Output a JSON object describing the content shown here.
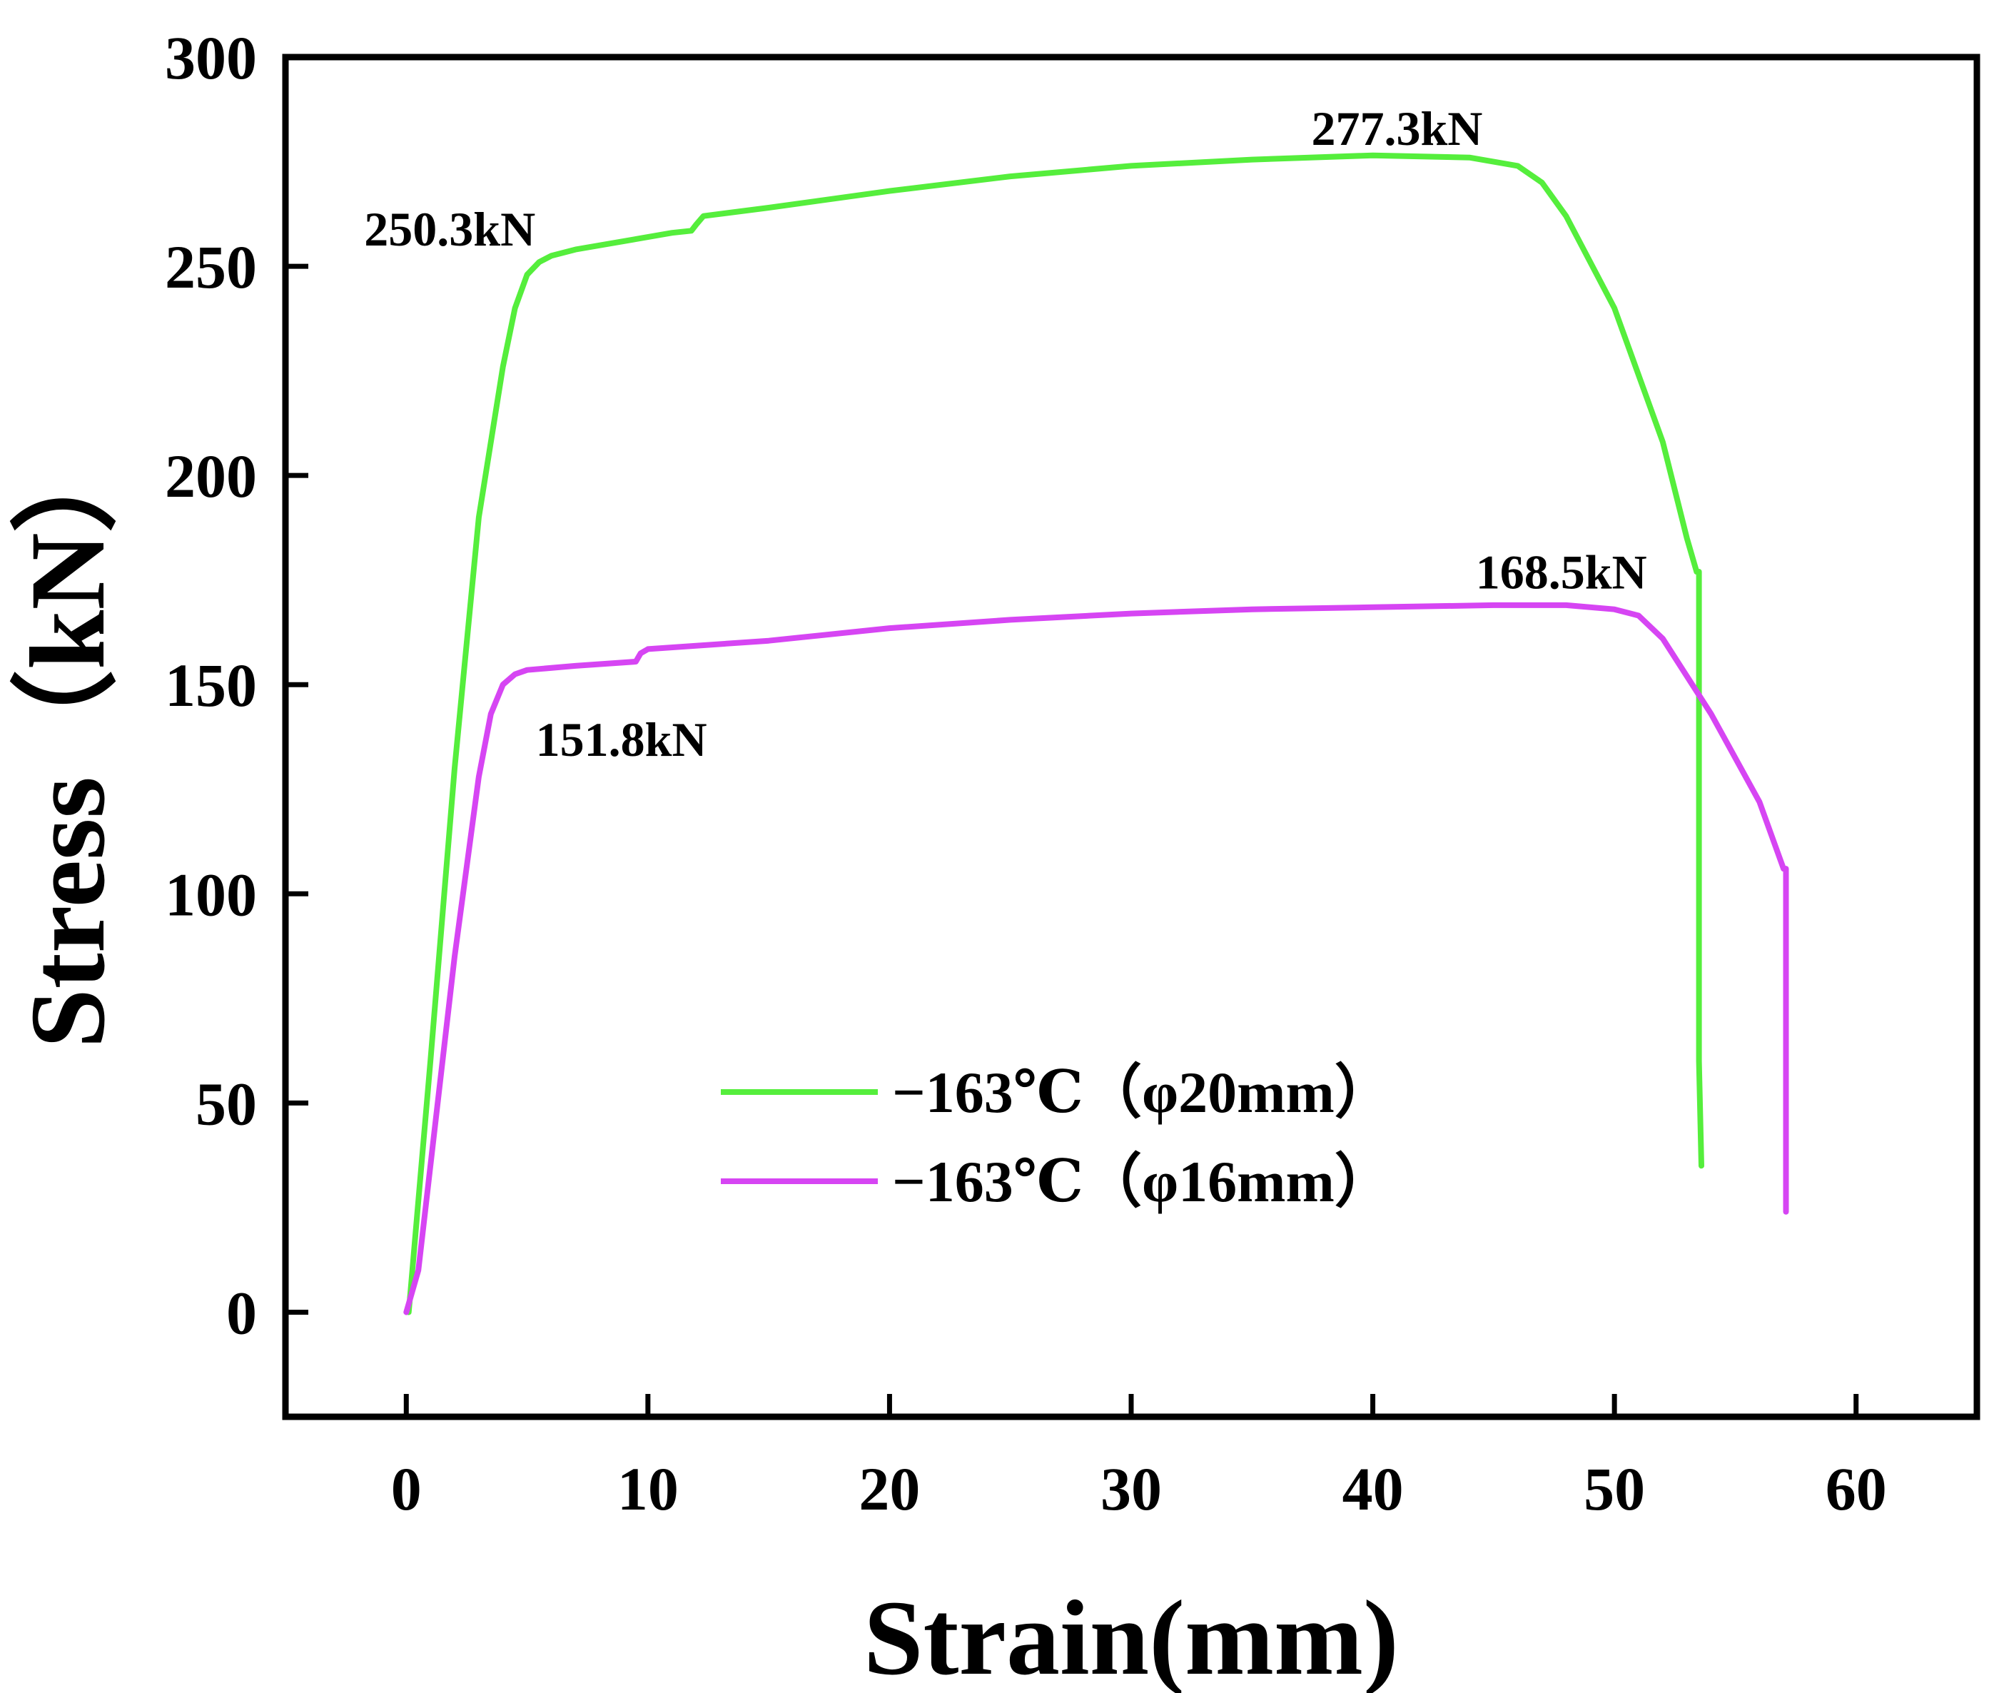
{
  "chart_data": {
    "type": "line",
    "title": "",
    "xlabel": "Strain(mm)",
    "ylabel": "Stress（kN）",
    "xlim": [
      -5,
      65
    ],
    "ylim": [
      -25,
      300
    ],
    "xticks": [
      0,
      10,
      20,
      30,
      40,
      50,
      60
    ],
    "yticks": [
      0,
      50,
      100,
      150,
      200,
      250,
      300
    ],
    "grid": false,
    "legend_position": "bottom-center",
    "series": [
      {
        "name": "−163℃（φ20mm）",
        "color": "#55ee3c",
        "x": [
          0.1,
          1.0,
          2.0,
          3.0,
          4.0,
          4.5,
          5.0,
          5.5,
          6.0,
          7.0,
          9.0,
          11.0,
          11.8,
          12.0,
          12.3,
          15.0,
          20.0,
          25.0,
          30.0,
          35.0,
          40.0,
          44.0,
          46.0,
          47.0,
          48.0,
          50.0,
          52.0,
          53.0,
          53.4,
          53.5,
          53.5,
          53.6
        ],
        "y": [
          0,
          60,
          130,
          190,
          226,
          240,
          248,
          251,
          252.5,
          254,
          256,
          258,
          258.5,
          260,
          262,
          264,
          268,
          271.5,
          274,
          275.5,
          276.5,
          276,
          274,
          270,
          262,
          240,
          208,
          185,
          177,
          177,
          60,
          35
        ]
      },
      {
        "name": "−163℃（φ16mm）",
        "color": "#d645f3",
        "x": [
          0.0,
          0.5,
          1.0,
          2.0,
          3.0,
          3.5,
          4.0,
          4.5,
          5.0,
          7.0,
          9.5,
          9.7,
          10.0,
          15.0,
          20.0,
          25.0,
          30.0,
          35.0,
          40.0,
          45.0,
          48.0,
          50.0,
          51.0,
          52.0,
          54.0,
          56.0,
          57.0,
          57.1,
          57.1,
          57.1
        ],
        "y": [
          0,
          10,
          35,
          85,
          128,
          143,
          150,
          152.5,
          153.5,
          154.5,
          155.5,
          157.5,
          158.5,
          160.5,
          163.5,
          165.5,
          167,
          168,
          168.5,
          169,
          169,
          168,
          166.5,
          161,
          143,
          122,
          106,
          106,
          70,
          24
        ]
      }
    ],
    "annotations": [
      {
        "text": "250.3kN",
        "x": 1.8,
        "y": 255
      },
      {
        "text": "277.3kN",
        "x": 41.0,
        "y": 279
      },
      {
        "text": "168.5kN",
        "x": 47.8,
        "y": 173
      },
      {
        "text": "151.8kN",
        "x": 8.9,
        "y": 133
      }
    ]
  }
}
